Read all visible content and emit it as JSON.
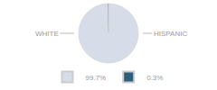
{
  "chart_data": {
    "type": "pie",
    "categories": [
      "99.7%",
      "0.3%"
    ],
    "values": [
      99.7,
      0.3
    ],
    "colors": [
      "#d6dde8",
      "#2e5f7a"
    ],
    "annotations": [
      "WHITE",
      "HISPANIC"
    ],
    "legend": "bottom"
  }
}
